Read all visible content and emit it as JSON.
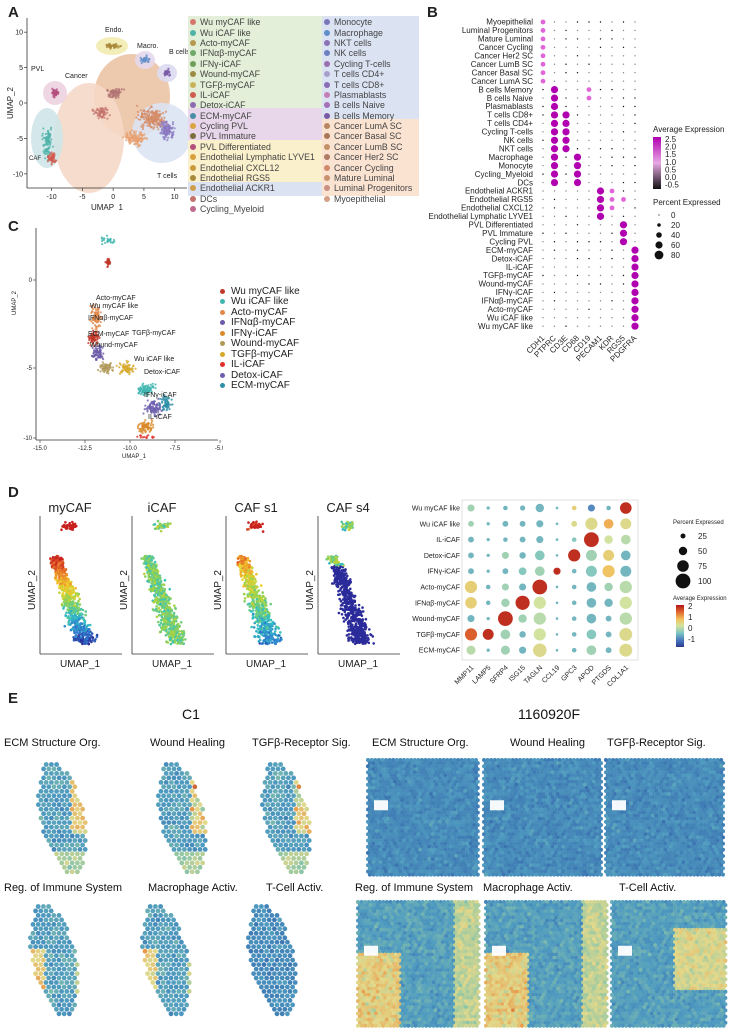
{
  "panels": {
    "A": "A",
    "B": "B",
    "C": "C",
    "D": "D",
    "E": "E"
  },
  "panelA": {
    "xlabel": "UMAP_1",
    "ylabel": "UMAP_2",
    "xticks": [
      "-10",
      "-5",
      "0",
      "5",
      "10"
    ],
    "yticks": [
      "10",
      "5",
      "0",
      "-5",
      "-10"
    ],
    "cluster_labels": {
      "endo": "Endo.",
      "macro": "Macro.",
      "bcells": "B cells",
      "pvl": "PVL",
      "cancer": "Cancer",
      "caf": "CAF",
      "tcells": "T cells"
    },
    "legend_left": [
      {
        "label": "Wu myCAF like",
        "color": "#d4776a"
      },
      {
        "label": "Wu iCAF like",
        "color": "#4fb3a9"
      },
      {
        "label": "Acto-myCAF",
        "color": "#b79850"
      },
      {
        "label": "IFNαβ-myCAF",
        "color": "#6fa86b"
      },
      {
        "label": "IFNγ-iCAF",
        "color": "#6e9f5a"
      },
      {
        "label": "Wound-myCAF",
        "color": "#9e8b43"
      },
      {
        "label": "TGFβ-myCAF",
        "color": "#c9b258"
      },
      {
        "label": "IL-iCAF",
        "color": "#d15b4f"
      },
      {
        "label": "Detox-iCAF",
        "color": "#8e6bb0"
      },
      {
        "label": "ECM-myCAF",
        "color": "#4a8fa6"
      },
      {
        "label": "Cycling PVL",
        "color": "#d9a441"
      },
      {
        "label": "PVL Immature",
        "color": "#7d6e3e"
      },
      {
        "label": "PVL Differentiated",
        "color": "#b44e7d"
      },
      {
        "label": "Endothelial Lymphatic LYVE1",
        "color": "#d8a03c"
      },
      {
        "label": "Endothelial CXCL12",
        "color": "#c99a3a"
      },
      {
        "label": "Endothelial RGS5",
        "color": "#a98a3b"
      },
      {
        "label": "Endothelial ACKR1",
        "color": "#cf9d4a"
      },
      {
        "label": "DCs",
        "color": "#c4736c"
      },
      {
        "label": "Cycling_Myeloid",
        "color": "#bd6a8d"
      }
    ],
    "legend_right": [
      {
        "label": "Monocyte",
        "color": "#7a78b8"
      },
      {
        "label": "Macrophage",
        "color": "#5f8fc9"
      },
      {
        "label": "NKT cells",
        "color": "#8b73b3"
      },
      {
        "label": "NK cells",
        "color": "#6b80c0"
      },
      {
        "label": "Cycling T-cells",
        "color": "#9a6fb0"
      },
      {
        "label": "T cells CD4+",
        "color": "#a8a0cc"
      },
      {
        "label": "T cells CD8+",
        "color": "#8a6bb6"
      },
      {
        "label": "Plasmablasts",
        "color": "#c47fb6"
      },
      {
        "label": "B cells Naive",
        "color": "#a56fb9"
      },
      {
        "label": "B cells Memory",
        "color": "#7b5aa5"
      },
      {
        "label": "Cancer LumA SC",
        "color": "#b88660"
      },
      {
        "label": "Cancer Basal SC",
        "color": "#a9765a"
      },
      {
        "label": "Cancer LumB SC",
        "color": "#c49166"
      },
      {
        "label": "Cancer Her2 SC",
        "color": "#b07a66"
      },
      {
        "label": "Cancer Cycling",
        "color": "#d08a6a"
      },
      {
        "label": "Mature Luminal",
        "color": "#c9916e"
      },
      {
        "label": "Luminal Progenitors",
        "color": "#c98f80"
      },
      {
        "label": "Myoepithelial",
        "color": "#d4a085"
      }
    ]
  },
  "panelB": {
    "rows": [
      "Myoepithelial",
      "Luminal Progenitors",
      "Mature Luminal",
      "Cancer Cycling",
      "Cancer Her2 SC",
      "Cancer LumB SC",
      "Cancer Basal SC",
      "Cancer LumA SC",
      "B cells Memory",
      "B cells Naive",
      "Plasmablasts",
      "T cells CD8+",
      "T cells CD4+",
      "Cycling T-cells",
      "NK cells",
      "NKT cells",
      "Macrophage",
      "Monocyte",
      "Cycling_Myeloid",
      "DCs",
      "Endothelial ACKR1",
      "Endothelial RGS5",
      "Endothelial CXCL12",
      "Endothelial Lymphatic LYVE1",
      "PVL Differentiated",
      "PVL Immature",
      "Cycling PVL",
      "ECM-myCAF",
      "Detox-iCAF",
      "IL-iCAF",
      "TGFβ-myCAF",
      "Wound-myCAF",
      "IFNγ-iCAF",
      "IFNαβ-myCAF",
      "Acto-myCAF",
      "Wu iCAF like",
      "Wu myCAF like"
    ],
    "cols": [
      "CDH1",
      "PTPRC",
      "CD3E",
      "CD68",
      "CD19",
      "PECAM1",
      "KDR",
      "RGS5",
      "PDGFRA"
    ],
    "legend_color_title": "Average Expression",
    "legend_color_ticks": [
      "2.5",
      "2.0",
      "1.5",
      "1.0",
      "0.5",
      "0.0",
      "-0.5"
    ],
    "legend_size_title": "Percent Expressed",
    "legend_size_ticks": [
      "0",
      "20",
      "40",
      "60",
      "80"
    ]
  },
  "panelC": {
    "xlabel": "UMAP_1",
    "ylabel": "UMAP_2",
    "xticks": [
      "-15.0",
      "-12.5",
      "-10.0",
      "-7.5",
      "-5.0"
    ],
    "yticks": [
      "0",
      "-5",
      "-10"
    ],
    "labels": [
      "Acto-myCAF",
      "Wu myCAF like",
      "IFNαβ-myCAF",
      "TGFβ-myCAF",
      "ECM-myCAF",
      "Wound-myCAF",
      "Wu iCAF like",
      "Detox-iCAF",
      "IFNγ-iCAF",
      "IL-iCAF"
    ],
    "legend": [
      {
        "label": "Wu myCAF like",
        "color": "#c0392b"
      },
      {
        "label": "Wu iCAF like",
        "color": "#3fb5b0"
      },
      {
        "label": "Acto-myCAF",
        "color": "#e0884a"
      },
      {
        "label": "IFNαβ-myCAF",
        "color": "#6c5aa8"
      },
      {
        "label": "IFNγ-iCAF",
        "color": "#d98a2b"
      },
      {
        "label": "Wound-myCAF",
        "color": "#b09a5a"
      },
      {
        "label": "TGFβ-myCAF",
        "color": "#d6a728"
      },
      {
        "label": "IL-iCAF",
        "color": "#e0302a"
      },
      {
        "label": "Detox-iCAF",
        "color": "#6d5fae"
      },
      {
        "label": "ECM-myCAF",
        "color": "#2f8fa8"
      }
    ]
  },
  "panelD": {
    "feature_titles": [
      "myCAF",
      "iCAF",
      "CAF s1",
      "CAF s4"
    ],
    "xlabel": "UMAP_1",
    "ylabel": "UMAP_2",
    "rows": [
      "Wu myCAF like",
      "Wu iCAF like",
      "IL-iCAF",
      "Detox-iCAF",
      "IFNγ-iCAF",
      "Acto-myCAF",
      "IFNαβ-myCAF",
      "Wound-myCAF",
      "TGFβ-myCAF",
      "ECM-myCAF"
    ],
    "cols": [
      "MMP11",
      "LAMP5",
      "SFRP4",
      "ISG15",
      "TAGLN",
      "CCL19",
      "GPC3",
      "APOD",
      "PTGDS",
      "COL1A1"
    ],
    "legend_size_title": "Percent Expressed",
    "legend_size_ticks": [
      "25",
      "50",
      "75",
      "100"
    ],
    "legend_color_title": "Average Expression",
    "legend_color_ticks": [
      "2",
      "1",
      "0",
      "-1"
    ]
  },
  "panelE": {
    "sample_left": "C1",
    "sample_right": "1160920F",
    "titles_top": [
      "ECM Structure Org.",
      "Wound Healing",
      "TGFβ-Receptor Sig."
    ],
    "titles_bottom": [
      "Reg. of Immune System",
      "Macrophage Activ.",
      "T-Cell Activ."
    ]
  }
}
